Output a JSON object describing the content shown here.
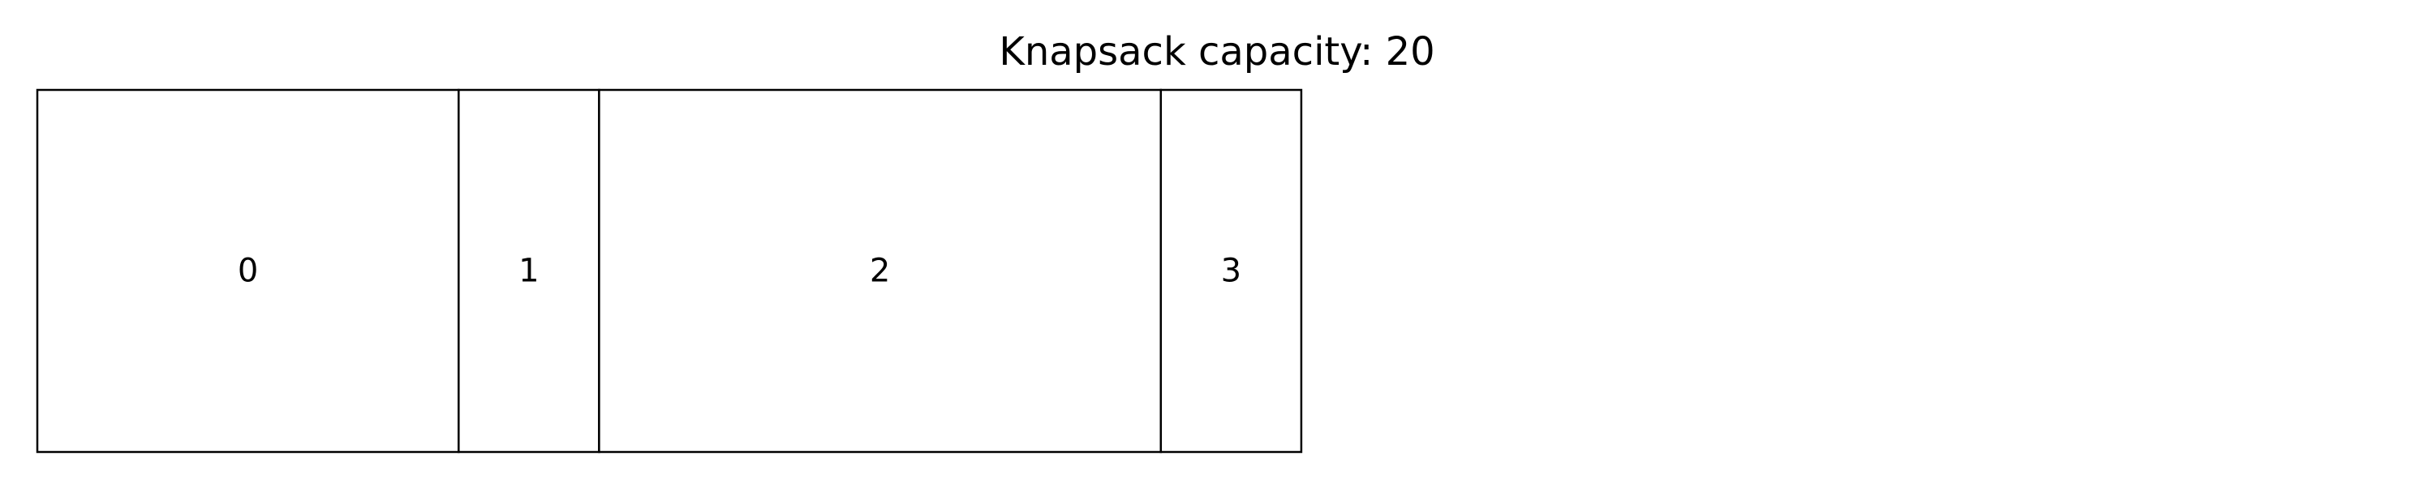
{
  "title": "Knapsack capacity: 20",
  "capacity": 20,
  "items": [
    {
      "label": "0",
      "weight": 6
    },
    {
      "label": "1",
      "weight": 2
    },
    {
      "label": "2",
      "weight": 8
    },
    {
      "label": "3",
      "weight": 2
    }
  ],
  "colors": {
    "background": "#ffffff",
    "stroke": "#000000",
    "text": "#000000"
  }
}
